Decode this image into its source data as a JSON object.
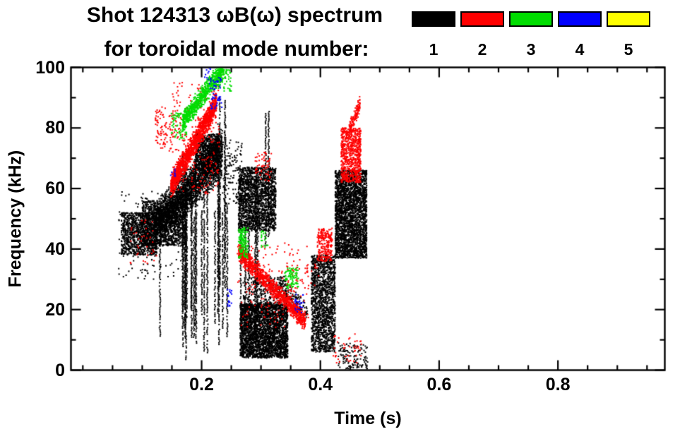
{
  "chart_data": {
    "type": "scatter",
    "title": "Shot 124313 ωB(ω) spectrum",
    "subtitle": "for toroidal mode number:",
    "xlabel": "Time (s)",
    "ylabel": "Frequency (kHz)",
    "xlim": [
      -0.02,
      0.98
    ],
    "ylim": [
      0,
      100
    ],
    "xticks": [
      0.2,
      0.4,
      0.6,
      0.8
    ],
    "xtick_labels": [
      "0.2",
      "0.4",
      "0.6",
      "0.8"
    ],
    "x_minor_step": 0.05,
    "yticks": [
      0,
      20,
      40,
      60,
      80,
      100
    ],
    "ytick_labels": [
      "0",
      "20",
      "40",
      "60",
      "80",
      "100"
    ],
    "y_minor_step": 10,
    "grid": false,
    "legend_position": "top-right",
    "legend_entries": [
      {
        "label": "1",
        "color": "#000000"
      },
      {
        "label": "2",
        "color": "#ff0000"
      },
      {
        "label": "3",
        "color": "#00dd00"
      },
      {
        "label": "4",
        "color": "#0000ff"
      },
      {
        "label": "5",
        "color": "#ffff00"
      }
    ],
    "series": [
      {
        "name": "1",
        "color": "#000000",
        "clusters": [
          {
            "kind": "blob",
            "t": [
              0.065,
              0.125
            ],
            "f": [
              38,
              52
            ],
            "n": 1000
          },
          {
            "kind": "blob",
            "t": [
              0.1,
              0.175
            ],
            "f": [
              41,
              56
            ],
            "n": 1200
          },
          {
            "kind": "blob",
            "t": [
              0.06,
              0.175
            ],
            "f": [
              30,
              60
            ],
            "n": 160
          },
          {
            "kind": "chirp",
            "t": [
              0.12,
              0.235
            ],
            "f": [
              47,
              72
            ],
            "th": 9,
            "n": 2600
          },
          {
            "kind": "blob",
            "t": [
              0.19,
              0.23
            ],
            "f": [
              66,
              78
            ],
            "n": 700
          },
          {
            "kind": "vstreaks",
            "t": [
              0.125,
              0.265
            ],
            "fTop": [
              50,
              72
            ],
            "fBot": [
              3,
              22
            ],
            "streaks": 20
          },
          {
            "kind": "vstreaks",
            "t": [
              0.225,
              0.255
            ],
            "fTop": [
              80,
              95
            ],
            "fBot": [
              25,
              45
            ],
            "streaks": 4
          },
          {
            "kind": "vstreaks",
            "t": [
              0.295,
              0.315
            ],
            "fTop": [
              85,
              97
            ],
            "fBot": [
              40,
              60
            ],
            "streaks": 2
          },
          {
            "kind": "blob",
            "t": [
              0.235,
              0.268
            ],
            "f": [
              55,
              76
            ],
            "n": 120
          },
          {
            "kind": "blob",
            "t": [
              0.262,
              0.325
            ],
            "f": [
              46,
              67
            ],
            "n": 1700
          },
          {
            "kind": "vstreaks",
            "t": [
              0.262,
              0.3
            ],
            "fTop": [
              58,
              66
            ],
            "fBot": [
              6,
              20
            ],
            "streaks": 6
          },
          {
            "kind": "blob",
            "t": [
              0.265,
              0.345
            ],
            "f": [
              4,
              22
            ],
            "n": 2800
          },
          {
            "kind": "blob",
            "t": [
              0.27,
              0.345
            ],
            "f": [
              20,
              31
            ],
            "n": 320
          },
          {
            "kind": "chirp",
            "t": [
              0.33,
              0.378
            ],
            "f": [
              28,
              19
            ],
            "th": 4,
            "n": 140
          },
          {
            "kind": "blob",
            "t": [
              0.385,
              0.425
            ],
            "f": [
              6,
              38
            ],
            "n": 1500
          },
          {
            "kind": "blob",
            "t": [
              0.425,
              0.478
            ],
            "f": [
              37,
              66
            ],
            "n": 2800
          },
          {
            "kind": "blob",
            "t": [
              0.43,
              0.48
            ],
            "f": [
              0,
              9
            ],
            "n": 130
          }
        ]
      },
      {
        "name": "2",
        "color": "#ff0000",
        "clusters": [
          {
            "kind": "chirp",
            "t": [
              0.148,
              0.225
            ],
            "f": [
              61,
              88
            ],
            "th": 4.5,
            "n": 1500
          },
          {
            "kind": "blob",
            "t": [
              0.15,
              0.23
            ],
            "f": [
              58,
              95
            ],
            "n": 260
          },
          {
            "kind": "blob",
            "t": [
              0.122,
              0.152
            ],
            "f": [
              72,
              87
            ],
            "n": 90
          },
          {
            "kind": "chirp",
            "t": [
              0.262,
              0.375
            ],
            "f": [
              39,
              16
            ],
            "th": 3.5,
            "n": 1200
          },
          {
            "kind": "blob",
            "t": [
              0.26,
              0.38
            ],
            "f": [
              14,
              42
            ],
            "n": 160
          },
          {
            "kind": "blob",
            "t": [
              0.395,
              0.42
            ],
            "f": [
              36,
              47
            ],
            "n": 240
          },
          {
            "kind": "blob",
            "t": [
              0.435,
              0.468
            ],
            "f": [
              62,
              80
            ],
            "n": 750
          },
          {
            "kind": "chirp",
            "t": [
              0.448,
              0.467
            ],
            "f": [
              79,
              88
            ],
            "th": 3,
            "n": 130
          },
          {
            "kind": "blob",
            "t": [
              0.29,
              0.318
            ],
            "f": [
              62,
              72
            ],
            "n": 60
          },
          {
            "kind": "blob",
            "t": [
              0.42,
              0.47
            ],
            "f": [
              2,
              12
            ],
            "n": 45
          },
          {
            "kind": "blob",
            "t": [
              0.08,
              0.125
            ],
            "f": [
              35,
              50
            ],
            "n": 35
          },
          {
            "kind": "blob",
            "t": [
              0.34,
              0.4
            ],
            "f": [
              25,
              35
            ],
            "n": 50
          }
        ]
      },
      {
        "name": "3",
        "color": "#00dd00",
        "clusters": [
          {
            "kind": "chirp",
            "t": [
              0.168,
              0.238
            ],
            "f": [
              82,
              100
            ],
            "th": 4,
            "n": 800
          },
          {
            "kind": "blob",
            "t": [
              0.148,
              0.175
            ],
            "f": [
              76,
              85
            ],
            "n": 70
          },
          {
            "kind": "blob",
            "t": [
              0.262,
              0.278
            ],
            "f": [
              37,
              47
            ],
            "n": 140
          },
          {
            "kind": "blob",
            "t": [
              0.34,
              0.363
            ],
            "f": [
              27,
              34
            ],
            "n": 90
          },
          {
            "kind": "blob",
            "t": [
              0.225,
              0.25
            ],
            "f": [
              92,
              100
            ],
            "n": 70
          },
          {
            "kind": "blob",
            "t": [
              0.3,
              0.312
            ],
            "f": [
              40,
              46
            ],
            "n": 20
          }
        ]
      },
      {
        "name": "4",
        "color": "#0000ff",
        "clusters": [
          {
            "kind": "blob",
            "t": [
              0.212,
              0.234
            ],
            "f": [
              86,
              97
            ],
            "n": 55
          },
          {
            "kind": "blob",
            "t": [
              0.243,
              0.252
            ],
            "f": [
              21,
              27
            ],
            "n": 18
          },
          {
            "kind": "blob",
            "t": [
              0.357,
              0.372
            ],
            "f": [
              19,
              25
            ],
            "n": 26
          },
          {
            "kind": "blob",
            "t": [
              0.205,
              0.216
            ],
            "f": [
              96,
              100
            ],
            "n": 12
          },
          {
            "kind": "blob",
            "t": [
              0.148,
              0.156
            ],
            "f": [
              64,
              69
            ],
            "n": 8
          }
        ]
      },
      {
        "name": "5",
        "color": "#ffff00",
        "clusters": []
      }
    ]
  }
}
